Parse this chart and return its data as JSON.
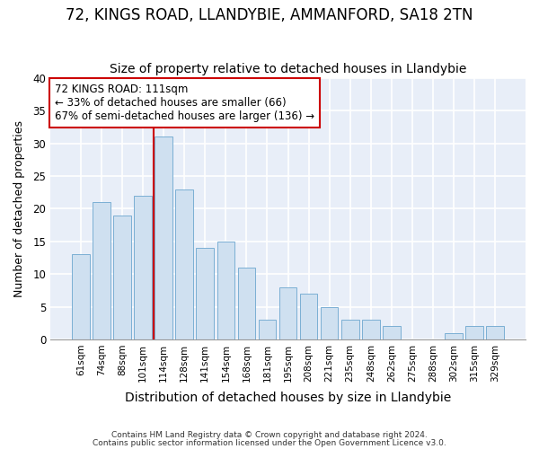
{
  "title1": "72, KINGS ROAD, LLANDYBIE, AMMANFORD, SA18 2TN",
  "title2": "Size of property relative to detached houses in Llandybie",
  "xlabel": "Distribution of detached houses by size in Llandybie",
  "ylabel": "Number of detached properties",
  "categories": [
    "61sqm",
    "74sqm",
    "88sqm",
    "101sqm",
    "114sqm",
    "128sqm",
    "141sqm",
    "154sqm",
    "168sqm",
    "181sqm",
    "195sqm",
    "208sqm",
    "221sqm",
    "235sqm",
    "248sqm",
    "262sqm",
    "275sqm",
    "288sqm",
    "302sqm",
    "315sqm",
    "329sqm"
  ],
  "values": [
    13,
    21,
    19,
    22,
    31,
    23,
    14,
    15,
    11,
    3,
    8,
    7,
    5,
    3,
    3,
    2,
    0,
    0,
    1,
    2,
    2
  ],
  "bar_color": "#cfe0f0",
  "bar_edge_color": "#7bafd4",
  "vline_x": 3.5,
  "vline_color": "#cc0000",
  "annotation_text": "72 KINGS ROAD: 111sqm\n← 33% of detached houses are smaller (66)\n67% of semi-detached houses are larger (136) →",
  "annotation_box_color": "#ffffff",
  "annotation_box_edge": "#cc0000",
  "footer1": "Contains HM Land Registry data © Crown copyright and database right 2024.",
  "footer2": "Contains public sector information licensed under the Open Government Licence v3.0.",
  "ylim": [
    0,
    40
  ],
  "yticks": [
    0,
    5,
    10,
    15,
    20,
    25,
    30,
    35,
    40
  ],
  "bg_color": "#e8eef8",
  "grid_color": "#ffffff",
  "title1_fontsize": 12,
  "title2_fontsize": 10,
  "xlabel_fontsize": 10,
  "ylabel_fontsize": 9
}
